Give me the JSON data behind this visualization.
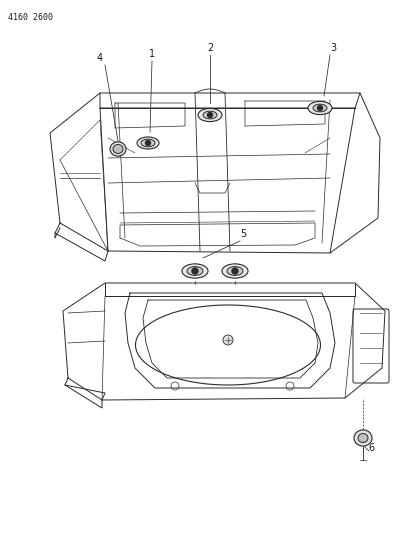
{
  "page_id": "4160 2600",
  "background_color": "#ffffff",
  "line_color": "#2a2a2a",
  "text_color": "#1a1a1a",
  "fig_width": 4.08,
  "fig_height": 5.33,
  "dpi": 100
}
